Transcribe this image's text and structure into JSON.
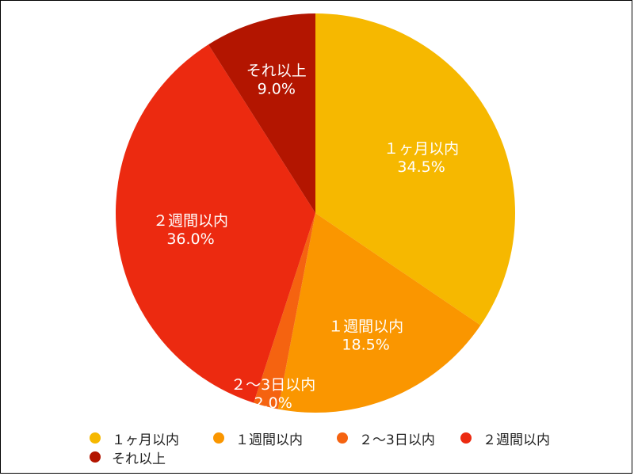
{
  "chart_data": {
    "type": "pie",
    "categories": [
      "１ヶ月以内",
      "１週間以内",
      "２〜3日以内",
      "２週間以内",
      "それ以上"
    ],
    "values": [
      34.5,
      18.5,
      2.0,
      36.0,
      9.0
    ],
    "value_labels": [
      "34.5%",
      "18.5%",
      "2.0%",
      "36.0%",
      "9.0%"
    ],
    "colors": [
      "#F6B800",
      "#FA9600",
      "#F56310",
      "#EC2A10",
      "#B31500"
    ],
    "start_angle_deg": 0,
    "direction": "clockwise",
    "legend_position": "bottom"
  }
}
